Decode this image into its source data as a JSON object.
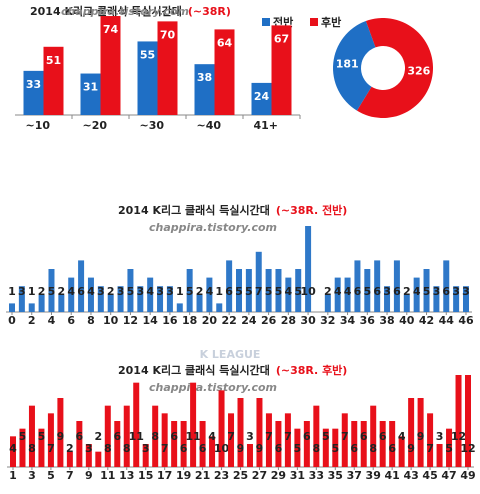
{
  "chart_data": [
    {
      "type": "bar",
      "title": "2014 K리그 클래식 득실시간대",
      "subtitle": "(~38R)",
      "watermark": "chappira.tistory.com",
      "categories": [
        "~10",
        "~20",
        "~30",
        "~40",
        "41+"
      ],
      "series": [
        {
          "name": "전반",
          "color": "#1f6fc5",
          "values": [
            33,
            31,
            55,
            38,
            24
          ]
        },
        {
          "name": "후반",
          "color": "#e8101a",
          "values": [
            51,
            74,
            70,
            64,
            67
          ]
        }
      ],
      "ylim": [
        0,
        80
      ]
    },
    {
      "type": "pie",
      "values": [
        326,
        181
      ],
      "colors": [
        "#e8101a",
        "#1f6fc5"
      ]
    },
    {
      "type": "minute",
      "title": "2014 K리그 클래식 득실시간대",
      "subtitle": "(~38R. 전반)",
      "watermark": "chappira.tistory.com",
      "logo": "K LEAGUE",
      "color": "#2f78c8",
      "x": [
        0,
        1,
        2,
        3,
        4,
        5,
        6,
        7,
        8,
        9,
        10,
        11,
        12,
        13,
        14,
        15,
        16,
        17,
        18,
        19,
        20,
        21,
        22,
        23,
        24,
        25,
        26,
        27,
        28,
        29,
        30,
        31,
        32,
        33,
        34,
        35,
        36,
        37,
        38,
        39,
        40,
        41,
        42,
        43,
        44,
        45,
        46
      ],
      "values": [
        1,
        3,
        1,
        2,
        5,
        2,
        4,
        6,
        4,
        3,
        2,
        3,
        5,
        3,
        4,
        3,
        3,
        1,
        5,
        2,
        4,
        1,
        6,
        5,
        5,
        7,
        5,
        5,
        4,
        5,
        10,
        null,
        2,
        4,
        4,
        6,
        5,
        6,
        3,
        6,
        2,
        4,
        5,
        3,
        6,
        3,
        3
      ],
      "xlim": [
        0,
        46
      ],
      "xticks": [
        0,
        2,
        4,
        6,
        8,
        10,
        12,
        14,
        16,
        18,
        20,
        22,
        24,
        26,
        28,
        30,
        32,
        34,
        36,
        38,
        40,
        42,
        44,
        46
      ],
      "ylim": [
        0,
        10
      ]
    },
    {
      "type": "minute",
      "title": "2014 K리그 클래식 득실시간대",
      "subtitle": "(~38R. 후반)",
      "watermark": "chappira.tistory.com",
      "color": "#e8101a",
      "x": [
        1,
        2,
        3,
        4,
        5,
        6,
        7,
        8,
        9,
        10,
        11,
        12,
        13,
        14,
        15,
        16,
        17,
        18,
        19,
        20,
        21,
        22,
        23,
        24,
        25,
        26,
        27,
        28,
        29,
        30,
        31,
        32,
        33,
        34,
        35,
        36,
        37,
        38,
        39,
        40,
        41,
        42,
        43,
        44,
        45,
        46,
        47,
        48,
        49
      ],
      "values": [
        4,
        5,
        8,
        5,
        7,
        9,
        2,
        6,
        3,
        2,
        8,
        6,
        8,
        11,
        3,
        8,
        7,
        6,
        6,
        11,
        6,
        4,
        10,
        7,
        9,
        3,
        9,
        7,
        6,
        7,
        5,
        6,
        8,
        5,
        5,
        7,
        6,
        6,
        8,
        6,
        6,
        4,
        9,
        9,
        7,
        3,
        5,
        12,
        12
      ],
      "xlim": [
        1,
        49
      ],
      "xticks": [
        1,
        3,
        5,
        7,
        9,
        11,
        13,
        15,
        17,
        19,
        21,
        23,
        25,
        27,
        29,
        31,
        33,
        35,
        37,
        39,
        41,
        43,
        45,
        47,
        49
      ],
      "ylim": [
        0,
        12
      ]
    }
  ]
}
